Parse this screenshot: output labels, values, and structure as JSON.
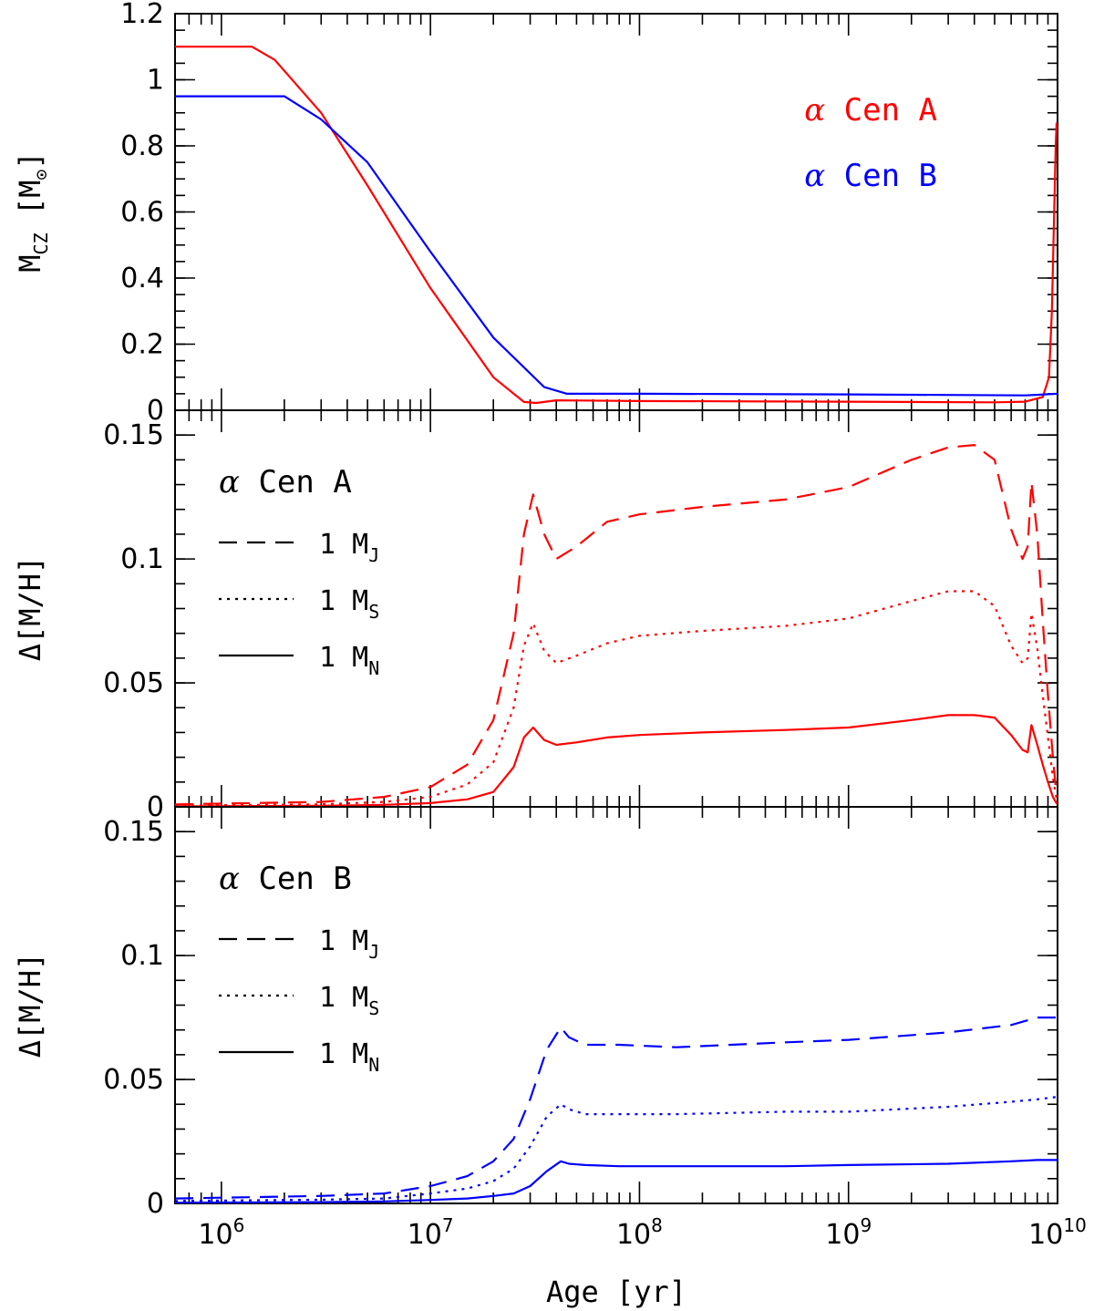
{
  "colors": {
    "star_a": "#ff0000",
    "star_b": "#0000ff",
    "axes": "#000000"
  },
  "chart_data": {
    "type": "line",
    "x_axis": {
      "label": "Age [yr]",
      "scale": "log",
      "xlim": [
        600000,
        10000000000
      ],
      "tick_labels": [
        {
          "value": 1000000,
          "base": "10",
          "exp": "6"
        },
        {
          "value": 10000000,
          "base": "10",
          "exp": "7"
        },
        {
          "value": 100000000,
          "base": "10",
          "exp": "8"
        },
        {
          "value": 1000000000,
          "base": "10",
          "exp": "9"
        },
        {
          "value": 10000000000,
          "base": "10",
          "exp": "10"
        }
      ]
    },
    "panels": [
      {
        "id": "mcz",
        "ylabel": "M",
        "ylabel_sub": "CZ",
        "ylabel_unit_open": "[M",
        "ylabel_unit_sub": "⊙",
        "ylabel_unit_close": "]",
        "ylim": [
          0,
          1.2
        ],
        "y_ticks": [
          {
            "value": 0,
            "label": "0"
          },
          {
            "value": 0.2,
            "label": "0.2"
          },
          {
            "value": 0.4,
            "label": "0.4"
          },
          {
            "value": 0.6,
            "label": "0.6"
          },
          {
            "value": 0.8,
            "label": "0.8"
          },
          {
            "value": 1.0,
            "label": "1"
          },
          {
            "value": 1.2,
            "label": "1.2"
          }
        ],
        "legend": [
          {
            "alpha": "α",
            "label": "Cen A",
            "color": "#ff0000"
          },
          {
            "alpha": "α",
            "label": "Cen B",
            "color": "#0000ff"
          }
        ],
        "series": [
          {
            "name": "α Cen A",
            "color": "#ff0000",
            "style": "solid",
            "x": [
              600000,
              1400000,
              1800000,
              3000000,
              5000000,
              10000000,
              20000000,
              28000000,
              32000000,
              40000000,
              100000000,
              1000000000,
              5000000000,
              7000000000,
              8500000000,
              9100000000,
              9400000000,
              9600000000,
              9800000000,
              9900000000
            ],
            "y": [
              1.1,
              1.1,
              1.06,
              0.9,
              0.68,
              0.37,
              0.1,
              0.025,
              0.022,
              0.03,
              0.028,
              0.026,
              0.024,
              0.026,
              0.04,
              0.1,
              0.3,
              0.55,
              0.8,
              0.87
            ]
          },
          {
            "name": "α Cen B",
            "color": "#0000ff",
            "style": "solid",
            "x": [
              600000,
              2000000,
              3000000,
              5000000,
              10000000,
              20000000,
              35000000,
              45000000,
              55000000,
              100000000,
              1000000000,
              7000000000,
              10000000000
            ],
            "y": [
              0.95,
              0.95,
              0.88,
              0.75,
              0.48,
              0.22,
              0.07,
              0.05,
              0.05,
              0.05,
              0.048,
              0.045,
              0.05
            ]
          }
        ]
      },
      {
        "id": "dmh_a",
        "ylabel": "Δ[M/H]",
        "ylim": [
          0,
          0.16
        ],
        "y_ticks": [
          {
            "value": 0,
            "label": "0"
          },
          {
            "value": 0.05,
            "label": "0.05"
          },
          {
            "value": 0.1,
            "label": "0.1"
          },
          {
            "value": 0.15,
            "label": "0.15"
          }
        ],
        "legend_title": {
          "alpha": "α",
          "label": "Cen A"
        },
        "legend": [
          {
            "prefix": "1 M",
            "sub": "J",
            "style": "dashed"
          },
          {
            "prefix": "1 M",
            "sub": "S",
            "style": "dotted"
          },
          {
            "prefix": "1 M",
            "sub": "N",
            "style": "solid"
          }
        ],
        "series": [
          {
            "name": "1 MJ",
            "color": "#ff0000",
            "style": "dashed",
            "x": [
              600000,
              3000000,
              6000000,
              10000000,
              15000000,
              20000000,
              25000000,
              28000000,
              31000000,
              35000000,
              40000000,
              50000000,
              70000000,
              100000000,
              200000000,
              500000000,
              1000000000,
              2000000000,
              3000000000,
              4000000000,
              5000000000,
              6000000000,
              6800000000,
              7200000000,
              7500000000,
              8000000000,
              8500000000,
              9000000000,
              9500000000,
              9800000000,
              10000000000
            ],
            "y": [
              0.001,
              0.002,
              0.004,
              0.008,
              0.017,
              0.035,
              0.07,
              0.11,
              0.126,
              0.11,
              0.1,
              0.105,
              0.115,
              0.118,
              0.121,
              0.124,
              0.129,
              0.14,
              0.145,
              0.146,
              0.14,
              0.112,
              0.1,
              0.105,
              0.131,
              0.11,
              0.075,
              0.045,
              0.02,
              0.008,
              0.004
            ]
          },
          {
            "name": "1 MS",
            "color": "#ff0000",
            "style": "dotted",
            "x": [
              600000,
              3000000,
              6000000,
              10000000,
              15000000,
              20000000,
              25000000,
              28000000,
              31000000,
              35000000,
              40000000,
              50000000,
              70000000,
              100000000,
              200000000,
              500000000,
              1000000000,
              2000000000,
              3000000000,
              4000000000,
              5000000000,
              6000000000,
              6800000000,
              7200000000,
              7500000000,
              8000000000,
              8500000000,
              9000000000,
              9500000000,
              9800000000,
              10000000000
            ],
            "y": [
              0.0005,
              0.001,
              0.002,
              0.004,
              0.009,
              0.018,
              0.04,
              0.065,
              0.074,
              0.063,
              0.058,
              0.061,
              0.066,
              0.069,
              0.071,
              0.073,
              0.076,
              0.083,
              0.087,
              0.087,
              0.081,
              0.065,
              0.058,
              0.06,
              0.078,
              0.064,
              0.045,
              0.028,
              0.012,
              0.005,
              0.002
            ]
          },
          {
            "name": "1 MN",
            "color": "#ff0000",
            "style": "solid",
            "x": [
              600000,
              3000000,
              6000000,
              10000000,
              15000000,
              20000000,
              25000000,
              28000000,
              31000000,
              35000000,
              40000000,
              50000000,
              70000000,
              100000000,
              200000000,
              500000000,
              1000000000,
              2000000000,
              3000000000,
              4000000000,
              5000000000,
              6000000000,
              6800000000,
              7200000000,
              7500000000,
              8000000000,
              8500000000,
              9000000000,
              9500000000,
              9800000000,
              10000000000
            ],
            "y": [
              0.0002,
              0.0004,
              0.0008,
              0.0015,
              0.003,
              0.006,
              0.016,
              0.028,
              0.032,
              0.027,
              0.025,
              0.026,
              0.028,
              0.029,
              0.03,
              0.031,
              0.032,
              0.035,
              0.037,
              0.037,
              0.036,
              0.029,
              0.023,
              0.022,
              0.033,
              0.025,
              0.017,
              0.01,
              0.004,
              0.002,
              0.001
            ]
          }
        ]
      },
      {
        "id": "dmh_b",
        "ylabel": "Δ[M/H]",
        "ylim": [
          0,
          0.16
        ],
        "y_ticks": [
          {
            "value": 0,
            "label": "0"
          },
          {
            "value": 0.05,
            "label": "0.05"
          },
          {
            "value": 0.1,
            "label": "0.1"
          },
          {
            "value": 0.15,
            "label": "0.15"
          }
        ],
        "legend_title": {
          "alpha": "α",
          "label": "Cen B"
        },
        "legend": [
          {
            "prefix": "1 M",
            "sub": "J",
            "style": "dashed"
          },
          {
            "prefix": "1 M",
            "sub": "S",
            "style": "dotted"
          },
          {
            "prefix": "1 M",
            "sub": "N",
            "style": "solid"
          }
        ],
        "series": [
          {
            "name": "1 MJ",
            "color": "#0000ff",
            "style": "dashed",
            "x": [
              600000,
              3000000,
              6000000,
              10000000,
              15000000,
              20000000,
              25000000,
              30000000,
              36000000,
              42000000,
              46000000,
              55000000,
              80000000,
              150000000,
              500000000,
              1000000000,
              3000000000,
              6000000000,
              8000000000,
              10000000000
            ],
            "y": [
              0.002,
              0.003,
              0.004,
              0.007,
              0.011,
              0.017,
              0.026,
              0.042,
              0.062,
              0.071,
              0.067,
              0.064,
              0.064,
              0.063,
              0.065,
              0.066,
              0.069,
              0.072,
              0.075,
              0.075
            ]
          },
          {
            "name": "1 MS",
            "color": "#0000ff",
            "style": "dotted",
            "x": [
              600000,
              3000000,
              6000000,
              10000000,
              15000000,
              20000000,
              25000000,
              30000000,
              36000000,
              42000000,
              46000000,
              55000000,
              80000000,
              150000000,
              500000000,
              1000000000,
              3000000000,
              6000000000,
              8000000000,
              10000000000
            ],
            "y": [
              0.001,
              0.0015,
              0.002,
              0.004,
              0.006,
              0.009,
              0.014,
              0.023,
              0.035,
              0.04,
              0.038,
              0.036,
              0.036,
              0.036,
              0.037,
              0.037,
              0.039,
              0.041,
              0.042,
              0.043
            ]
          },
          {
            "name": "1 MN",
            "color": "#0000ff",
            "style": "solid",
            "x": [
              600000,
              3000000,
              6000000,
              10000000,
              15000000,
              20000000,
              25000000,
              30000000,
              36000000,
              42000000,
              46000000,
              55000000,
              80000000,
              150000000,
              500000000,
              1000000000,
              3000000000,
              6000000000,
              8000000000,
              10000000000
            ],
            "y": [
              0.0003,
              0.0005,
              0.0008,
              0.0014,
              0.002,
              0.003,
              0.004,
              0.007,
              0.013,
              0.017,
              0.016,
              0.0155,
              0.015,
              0.015,
              0.015,
              0.0155,
              0.016,
              0.017,
              0.0175,
              0.0175
            ]
          }
        ]
      }
    ]
  }
}
